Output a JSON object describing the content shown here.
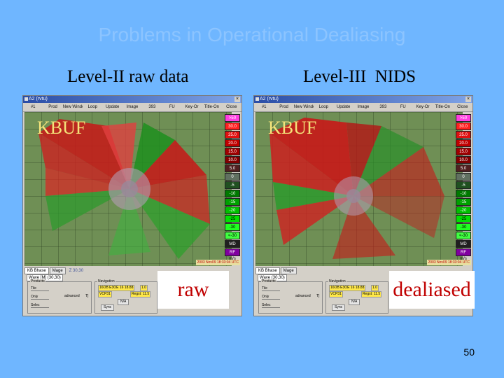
{
  "slide": {
    "title": "Problems in Operational Dealiasing",
    "left_label": "Level-II raw data",
    "right_label": "Level-III  NIDS",
    "page_number": "50"
  },
  "windows": [
    {
      "title": "A2 (rvtu)",
      "station": "KBUF",
      "overlay": "raw",
      "menu": [
        "#1",
        "Prod",
        "New Window",
        "Loop",
        "Update",
        "Image",
        "393",
        "FU",
        "Key-Or",
        "Title-On",
        "Close"
      ],
      "legend": [
        ">50",
        "30.0",
        "25.0",
        "20.0",
        "15.0",
        "10.0",
        "5.0",
        "0",
        "-5",
        "-10",
        "-15",
        "-20",
        "-25",
        "-30",
        "<-30",
        "MD",
        "RF"
      ],
      "legend_units": "m/s",
      "timestamp": "2003 Nov09 18:33:04 UTC",
      "tabs": [
        "KB Bhase",
        "Mage"
      ],
      "tab_extra": "Z 30,30",
      "subtab": "Wave [M] (30,30)",
      "products_title": "Products",
      "products": [
        "Tile",
        "Only",
        "Selec"
      ],
      "advanced_label": "advanced",
      "advanced_value": "T]",
      "nav_title": "Navigation",
      "nav_fields": [
        "16OB E3OE 16 18.88",
        "1.0",
        "VCP31",
        "Regst: 11.5"
      ],
      "nav_buttons": [
        "Sync",
        "N/A"
      ]
    },
    {
      "title": "A2 (rvtu)",
      "station": "KBUF",
      "overlay": "dealiased",
      "menu": [
        "#1",
        "Prod",
        "New Window",
        "Loop",
        "Update",
        "Image",
        "393",
        "FU",
        "Key-Or",
        "Title-On",
        "Close"
      ],
      "legend": [
        ">50",
        "30.0",
        "25.0",
        "20.0",
        "15.0",
        "10.0",
        "5.0",
        "0",
        "-5",
        "-10",
        "-15",
        "-20",
        "-25",
        "-30",
        "<-30",
        "MD",
        "RF"
      ],
      "legend_units": "m/s",
      "timestamp": "2003 Nov09 18:33:04 UTC",
      "tabs": [
        "KB Bhase",
        "Mage"
      ],
      "tab_extra": "",
      "subtab": "Wave (30,30)",
      "products_title": "Products",
      "products": [
        "Tile",
        "Only",
        "Selec"
      ],
      "advanced_label": "advanced",
      "advanced_value": "T]",
      "nav_title": "Navigation",
      "nav_fields": [
        "16OB E3OE 16 18.88",
        "1.0",
        "VCP31",
        "Regst: 11.5"
      ],
      "nav_buttons": [
        "Sync",
        "N/A"
      ]
    }
  ],
  "colors": {
    "background": "#6fb6ff",
    "legend": [
      "#ff3fe0",
      "#ff2020",
      "#e01010",
      "#c00000",
      "#a00000",
      "#800000",
      "#502020",
      "#607060",
      "#205020",
      "#007a00",
      "#00a000",
      "#00c000",
      "#00e000",
      "#20ff20",
      "#40ff40",
      "#202020",
      "#8000a0"
    ]
  }
}
